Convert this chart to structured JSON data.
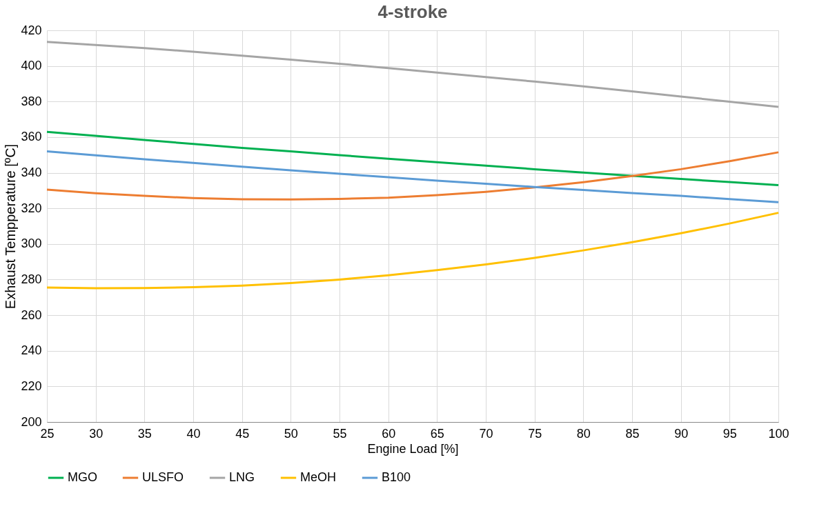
{
  "chart_data": {
    "type": "line",
    "title": "4-stroke",
    "xlabel": "Engine Load [%]",
    "ylabel": "Exhaust Tempperature [ºC]",
    "x": [
      25,
      30,
      35,
      40,
      45,
      50,
      55,
      60,
      65,
      70,
      75,
      80,
      85,
      90,
      95,
      100
    ],
    "series": [
      {
        "name": "MGO",
        "color": "#00b050",
        "values": [
          363,
          360.7,
          358.4,
          356.2,
          354,
          352,
          349.9,
          347.9,
          345.9,
          344,
          342,
          340.1,
          338.3,
          336.5,
          334.8,
          333
        ]
      },
      {
        "name": "ULSFO",
        "color": "#ed7d31",
        "values": [
          330.5,
          328.5,
          327,
          325.8,
          325.1,
          325,
          325.3,
          326,
          327.4,
          329.3,
          331.8,
          334.7,
          338.2,
          342,
          346.5,
          351.5
        ]
      },
      {
        "name": "LNG",
        "color": "#a5a5a5",
        "values": [
          413.5,
          411.8,
          410,
          408,
          405.8,
          403.5,
          401.2,
          398.8,
          396.3,
          393.8,
          391.2,
          388.5,
          385.7,
          382.8,
          379.9,
          377
        ]
      },
      {
        "name": "MeOH",
        "color": "#ffc000",
        "values": [
          275.5,
          275.1,
          275.2,
          275.7,
          276.6,
          278,
          280,
          282.4,
          285.3,
          288.5,
          292.2,
          296.4,
          301,
          306,
          311.5,
          317.5
        ]
      },
      {
        "name": "B100",
        "color": "#5b9bd5",
        "values": [
          352,
          349.8,
          347.6,
          345.5,
          343.4,
          341.4,
          339.4,
          337.5,
          335.6,
          333.8,
          332,
          330.3,
          328.6,
          327,
          325.2,
          323.5
        ]
      }
    ],
    "xlim": [
      25,
      100
    ],
    "xticks": [
      25,
      30,
      35,
      40,
      45,
      50,
      55,
      60,
      65,
      70,
      75,
      80,
      85,
      90,
      95,
      100
    ],
    "ylim": [
      200,
      420
    ],
    "yticks": [
      200,
      220,
      240,
      260,
      280,
      300,
      320,
      340,
      360,
      380,
      400,
      420
    ],
    "grid": true,
    "legend": "bottom",
    "marker": "none",
    "line_style": "solid"
  }
}
